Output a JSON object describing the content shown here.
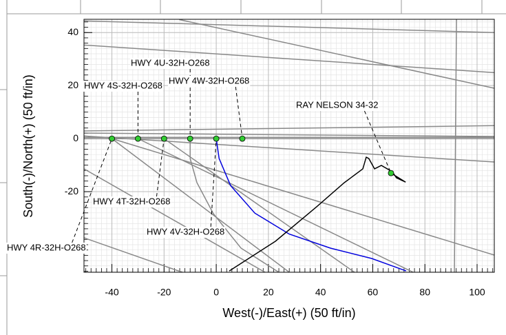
{
  "chart_data": {
    "type": "line",
    "xlabel": "West(-)/East(+) (50 ft/in)",
    "ylabel": "South(-)/North(+) (50 ft/in)",
    "xlim": [
      -50.7,
      106.6
    ],
    "ylim": [
      -50.4,
      45
    ],
    "xticks": [
      -40,
      -20,
      0,
      20,
      40,
      60,
      80,
      100
    ],
    "yticks": [
      -20,
      0,
      20,
      40
    ],
    "grid": true,
    "series": [
      {
        "color": "#888888",
        "x": [
          -50.7,
          106.6
        ],
        "y": [
          44.4,
          40
        ]
      },
      {
        "color": "#888888",
        "x": [
          -50.7,
          106.6
        ],
        "y": [
          35.3,
          24.9
        ]
      },
      {
        "color": "#888888",
        "x": [
          -14.2,
          106.6
        ],
        "y": [
          44.9,
          19
        ]
      },
      {
        "color": "#888888",
        "x": [
          -50.7,
          106.6
        ],
        "y": [
          2.9,
          4.9
        ]
      },
      {
        "color": "#888888",
        "x": [
          -50.7,
          106.6
        ],
        "y": [
          2.1,
          0.8
        ]
      },
      {
        "color": "#888888",
        "x": [
          -50.7,
          106.6
        ],
        "y": [
          0.5,
          0.5
        ]
      },
      {
        "color": "#888888",
        "x": [
          -50.7,
          106.6
        ],
        "y": [
          0,
          0
        ]
      },
      {
        "color": "#888888",
        "x": [
          -50.7,
          106.6
        ],
        "y": [
          1,
          -8.8
        ]
      },
      {
        "color": "#888888",
        "x": [
          -40,
          106.6
        ],
        "y": [
          0,
          -43.9
        ]
      },
      {
        "color": "#888888",
        "x": [
          -30,
          75.5
        ],
        "y": [
          0,
          -50.4
        ]
      },
      {
        "color": "#888888",
        "x": [
          -20,
          53
        ],
        "y": [
          0,
          -50.4
        ]
      },
      {
        "color": "#888888",
        "x": [
          -40,
          28
        ],
        "y": [
          0,
          -50.4
        ]
      },
      {
        "color": "#888888",
        "x": [
          -50.7,
          18.7
        ],
        "y": [
          -11.4,
          -50.4
        ]
      },
      {
        "color": "#888888",
        "x": [
          -50.7,
          -13
        ],
        "y": [
          -37.4,
          -50.4
        ]
      },
      {
        "color": "#888888",
        "x": [
          92.1,
          91.3
        ],
        "y": [
          44.9,
          -50.4
        ]
      },
      {
        "color": "#888888",
        "x": [
          -10,
          -10,
          -7.4,
          -1.1,
          9.5,
          24
        ],
        "y": [
          0,
          -7.5,
          -16.6,
          -28.3,
          -41.3,
          -50.4
        ]
      },
      {
        "color": "#0000dd",
        "x": [
          0,
          1.1,
          5.5,
          14.8,
          28,
          43.8,
          59.6,
          72.8
        ],
        "y": [
          0,
          -7.5,
          -17.7,
          -28.1,
          -36,
          -41.3,
          -45.2,
          -49.9
        ]
      },
      {
        "color": "#000000",
        "x": [
          5,
          22.7,
          38.5,
          49.1,
          56.2,
          57.5,
          58.5,
          60.7,
          63.3,
          67.5,
          69.1,
          72.6,
          67
        ],
        "y": [
          -49.9,
          -38.7,
          -25.7,
          -16.6,
          -11.4,
          -7,
          -7.5,
          -11.4,
          -10.1,
          -12.5,
          -14.8,
          -16.4,
          -13
        ]
      }
    ],
    "points": {
      "color": "#33cc33",
      "x": [
        -40,
        -30,
        -20,
        -10,
        0,
        10,
        67
      ],
      "y": [
        0,
        0,
        0,
        0,
        0,
        0,
        -13
      ]
    },
    "annotations": [
      {
        "text": "HWY 4U-32H-O268",
        "x": -10,
        "y": 0
      },
      {
        "text": "HWY 4S-32H-O268",
        "x": -30,
        "y": 0
      },
      {
        "text": "HWY 4W-32H-O268",
        "x": 10,
        "y": 0
      },
      {
        "text": "RAY NELSON 34-32",
        "x": 67,
        "y": -13
      },
      {
        "text": "HWY 4T-32H-O268",
        "x": -20,
        "y": 0
      },
      {
        "text": "HWY 4V-32H-O268",
        "x": 0,
        "y": 0
      },
      {
        "text": "HWY 4R-32H-O268",
        "x": -40,
        "y": 0
      }
    ]
  }
}
